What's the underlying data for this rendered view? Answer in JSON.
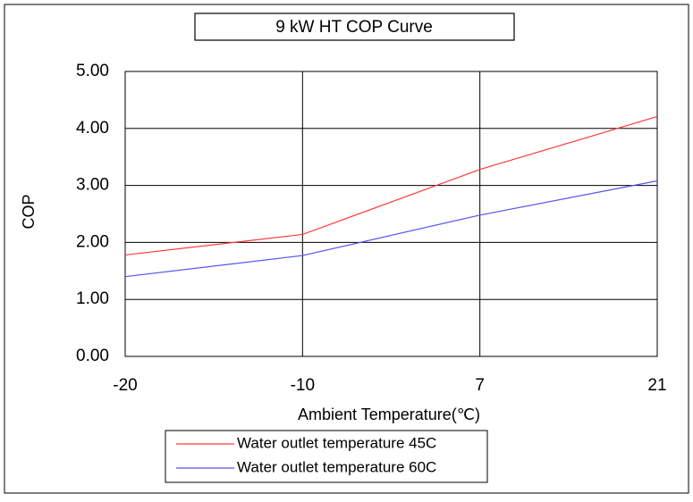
{
  "chart_data": {
    "type": "line",
    "title": "9 kW HT COP Curve",
    "categories": [
      "-20",
      "-10",
      "7",
      "21"
    ],
    "series": [
      {
        "name": "Water outlet temperature 45C",
        "color": "#ff3b3b",
        "values": [
          1.78,
          2.14,
          3.28,
          4.21
        ]
      },
      {
        "name": "Water outlet temperature 60C",
        "color": "#5555ee",
        "values": [
          1.4,
          1.77,
          2.48,
          3.08
        ]
      }
    ],
    "xlabel": "Ambient Temperature(℃)",
    "ylabel": "COP",
    "ylim": [
      0,
      5
    ],
    "yticks": [
      {
        "value": 0,
        "label": "0.00"
      },
      {
        "value": 1,
        "label": "1.00"
      },
      {
        "value": 2,
        "label": "2.00"
      },
      {
        "value": 3,
        "label": "3.00"
      },
      {
        "value": 4,
        "label": "4.00"
      },
      {
        "value": 5,
        "label": "5.00"
      }
    ],
    "grid": true,
    "legend": "bottom"
  }
}
